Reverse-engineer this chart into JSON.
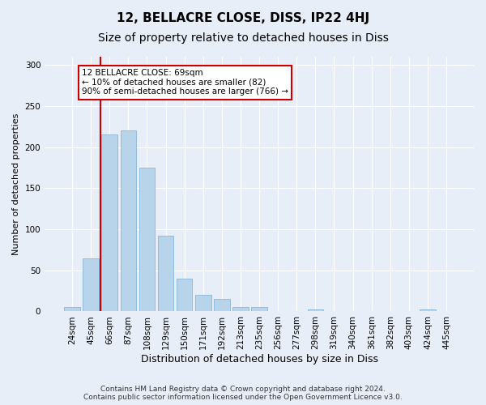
{
  "title": "12, BELLACRE CLOSE, DISS, IP22 4HJ",
  "subtitle": "Size of property relative to detached houses in Diss",
  "xlabel": "Distribution of detached houses by size in Diss",
  "ylabel": "Number of detached properties",
  "footer_line1": "Contains HM Land Registry data © Crown copyright and database right 2024.",
  "footer_line2": "Contains public sector information licensed under the Open Government Licence v3.0.",
  "categories": [
    "24sqm",
    "45sqm",
    "66sqm",
    "87sqm",
    "108sqm",
    "129sqm",
    "150sqm",
    "171sqm",
    "192sqm",
    "213sqm",
    "235sqm",
    "256sqm",
    "277sqm",
    "298sqm",
    "319sqm",
    "340sqm",
    "361sqm",
    "382sqm",
    "403sqm",
    "424sqm",
    "445sqm"
  ],
  "values": [
    5,
    65,
    215,
    220,
    175,
    92,
    40,
    20,
    15,
    5,
    5,
    0,
    0,
    2,
    0,
    0,
    0,
    0,
    0,
    2,
    0
  ],
  "bar_color": "#b8d4ea",
  "bar_edge_color": "#7aafd4",
  "highlight_index": 2,
  "highlight_line_color": "#cc0000",
  "annotation_text": "12 BELLACRE CLOSE: 69sqm\n← 10% of detached houses are smaller (82)\n90% of semi-detached houses are larger (766) →",
  "annotation_box_color": "#ffffff",
  "annotation_box_edge_color": "#cc0000",
  "ylim": [
    0,
    310
  ],
  "yticks": [
    0,
    50,
    100,
    150,
    200,
    250,
    300
  ],
  "bg_color": "#e8eef8",
  "plot_bg_color": "#e8eef8",
  "grid_color": "#ffffff",
  "title_fontsize": 11,
  "subtitle_fontsize": 10,
  "xlabel_fontsize": 9,
  "ylabel_fontsize": 8,
  "tick_fontsize": 7.5,
  "footer_fontsize": 6.5
}
